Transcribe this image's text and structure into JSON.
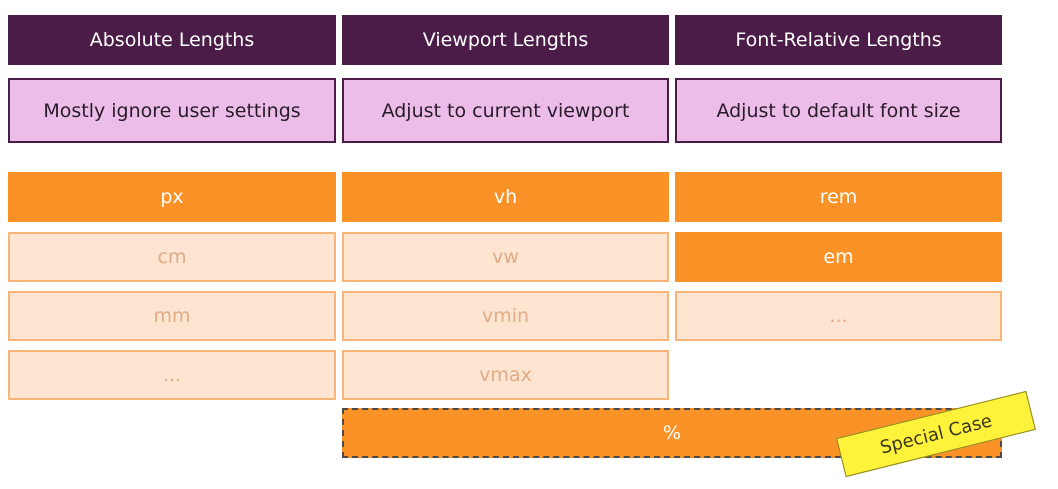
{
  "columns": [
    {
      "header": "Absolute Lengths",
      "description": "Mostly ignore user settings",
      "units": [
        {
          "label": "px",
          "style": "primary"
        },
        {
          "label": "cm",
          "style": "secondary"
        },
        {
          "label": "mm",
          "style": "secondary"
        },
        {
          "label": "...",
          "style": "secondary"
        }
      ]
    },
    {
      "header": "Viewport Lengths",
      "description": "Adjust to current viewport",
      "units": [
        {
          "label": "vh",
          "style": "primary"
        },
        {
          "label": "vw",
          "style": "secondary"
        },
        {
          "label": "vmin",
          "style": "secondary"
        },
        {
          "label": "vmax",
          "style": "secondary"
        }
      ]
    },
    {
      "header": "Font-Relative Lengths",
      "description": "Adjust to default font size",
      "units": [
        {
          "label": "rem",
          "style": "primary"
        },
        {
          "label": "em",
          "style": "primary"
        },
        {
          "label": "...",
          "style": "secondary"
        }
      ]
    }
  ],
  "percent": {
    "label": "%"
  },
  "special_case": {
    "label": "Special Case"
  },
  "colors": {
    "header_bg": "#4a1c47",
    "description_bg": "#ebbde8",
    "primary_unit": "#fa9228",
    "secondary_unit": "#fde5d2",
    "special_tag": "#fff23a"
  }
}
